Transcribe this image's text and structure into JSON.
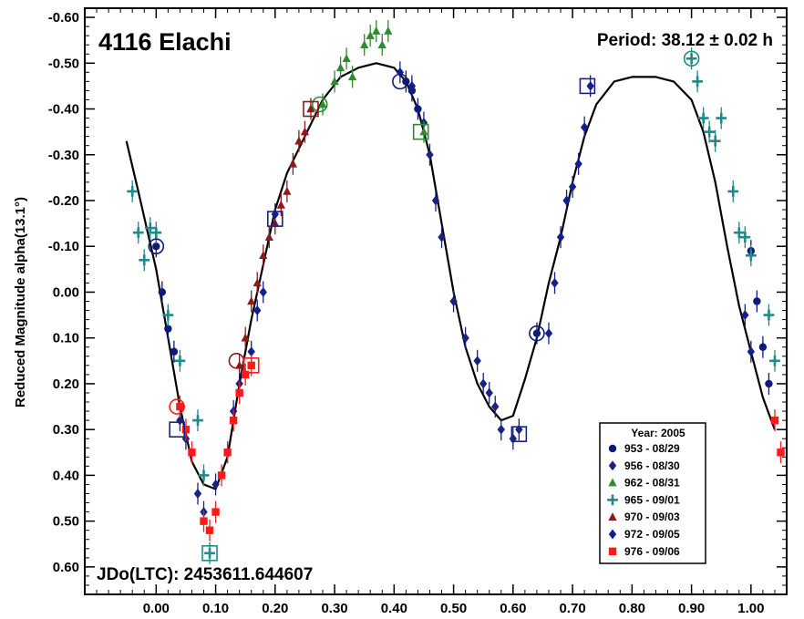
{
  "chart_data": {
    "type": "scatter",
    "title": "4116 Elachi",
    "period_label": "Period: 38.12 ± 0.02 h",
    "epoch_label": "JDo(LTC): 2453611.644607",
    "ylabel": "Reduced Magnitude alpha(13.1°)",
    "xlabel": "",
    "xlim": [
      -0.12,
      1.06
    ],
    "ylim": [
      0.66,
      -0.62
    ],
    "y_inverted": true,
    "grid": false,
    "legend_position": "bottom-right",
    "legend_title": "Year: 2005",
    "x_ticks": [
      {
        "v": 0.0,
        "label": "0.00"
      },
      {
        "v": 0.1,
        "label": "0.10"
      },
      {
        "v": 0.2,
        "label": "0.20"
      },
      {
        "v": 0.3,
        "label": "0.30"
      },
      {
        "v": 0.4,
        "label": "0.40"
      },
      {
        "v": 0.5,
        "label": "0.50"
      },
      {
        "v": 0.6,
        "label": "0.60"
      },
      {
        "v": 0.7,
        "label": "0.70"
      },
      {
        "v": 0.8,
        "label": "0.80"
      },
      {
        "v": 0.9,
        "label": "0.90"
      },
      {
        "v": 1.0,
        "label": "1.00"
      }
    ],
    "y_ticks": [
      {
        "v": -0.6,
        "label": "-0.60"
      },
      {
        "v": -0.5,
        "label": "-0.50"
      },
      {
        "v": -0.4,
        "label": "-0.40"
      },
      {
        "v": -0.3,
        "label": "-0.30"
      },
      {
        "v": -0.2,
        "label": "-0.20"
      },
      {
        "v": -0.1,
        "label": "-0.10"
      },
      {
        "v": 0.0,
        "label": "0.00"
      },
      {
        "v": 0.1,
        "label": "0.10"
      },
      {
        "v": 0.2,
        "label": "0.20"
      },
      {
        "v": 0.3,
        "label": "0.30"
      },
      {
        "v": 0.4,
        "label": "0.40"
      },
      {
        "v": 0.5,
        "label": "0.50"
      },
      {
        "v": 0.6,
        "label": "0.60"
      }
    ],
    "fit_curve": [
      [
        -0.05,
        -0.33
      ],
      [
        -0.03,
        -0.22
      ],
      [
        0.0,
        -0.05
      ],
      [
        0.02,
        0.1
      ],
      [
        0.04,
        0.25
      ],
      [
        0.06,
        0.37
      ],
      [
        0.08,
        0.42
      ],
      [
        0.1,
        0.43
      ],
      [
        0.12,
        0.36
      ],
      [
        0.14,
        0.2
      ],
      [
        0.16,
        0.06
      ],
      [
        0.18,
        -0.06
      ],
      [
        0.2,
        -0.18
      ],
      [
        0.22,
        -0.26
      ],
      [
        0.25,
        -0.34
      ],
      [
        0.28,
        -0.42
      ],
      [
        0.31,
        -0.47
      ],
      [
        0.34,
        -0.49
      ],
      [
        0.37,
        -0.5
      ],
      [
        0.4,
        -0.49
      ],
      [
        0.42,
        -0.46
      ],
      [
        0.44,
        -0.4
      ],
      [
        0.46,
        -0.3
      ],
      [
        0.48,
        -0.15
      ],
      [
        0.5,
        0.0
      ],
      [
        0.52,
        0.12
      ],
      [
        0.54,
        0.2
      ],
      [
        0.56,
        0.25
      ],
      [
        0.58,
        0.28
      ],
      [
        0.6,
        0.27
      ],
      [
        0.62,
        0.19
      ],
      [
        0.64,
        0.1
      ],
      [
        0.66,
        -0.02
      ],
      [
        0.68,
        -0.12
      ],
      [
        0.7,
        -0.24
      ],
      [
        0.72,
        -0.34
      ],
      [
        0.74,
        -0.41
      ],
      [
        0.77,
        -0.46
      ],
      [
        0.8,
        -0.47
      ],
      [
        0.84,
        -0.47
      ],
      [
        0.87,
        -0.46
      ],
      [
        0.9,
        -0.42
      ],
      [
        0.92,
        -0.35
      ],
      [
        0.94,
        -0.24
      ],
      [
        0.96,
        -0.1
      ],
      [
        0.98,
        0.03
      ],
      [
        1.0,
        0.13
      ],
      [
        1.02,
        0.23
      ],
      [
        1.04,
        0.3
      ]
    ],
    "series": [
      {
        "name": "953 - 08/29",
        "marker": "circle",
        "color": "#0d1a7a",
        "x": [
          0.0,
          0.01,
          0.02,
          0.03,
          0.42,
          0.43,
          0.44,
          0.64,
          1.0,
          1.01,
          1.02,
          1.03
        ],
        "y": [
          -0.1,
          0.0,
          0.08,
          0.13,
          -0.46,
          -0.44,
          -0.4,
          0.09,
          -0.09,
          0.02,
          0.12,
          0.2
        ]
      },
      {
        "name": "956 - 08/30",
        "marker": "diamond",
        "color": "#1a237e",
        "x": [
          0.04,
          0.05,
          0.07,
          0.08,
          0.1,
          0.12,
          0.45,
          0.46,
          0.47,
          0.48,
          0.5,
          0.52,
          0.54,
          0.55,
          0.56,
          0.57,
          0.58,
          0.6,
          0.61
        ],
        "y": [
          0.28,
          0.32,
          0.44,
          0.48,
          0.42,
          0.35,
          -0.37,
          -0.3,
          -0.2,
          -0.12,
          0.02,
          0.1,
          0.15,
          0.2,
          0.22,
          0.25,
          0.3,
          0.32,
          0.3
        ]
      },
      {
        "name": "962 - 08/31",
        "marker": "triangle",
        "color": "#2e8b2e",
        "x": [
          0.28,
          0.3,
          0.31,
          0.32,
          0.33,
          0.35,
          0.36,
          0.37,
          0.38,
          0.39,
          0.45
        ],
        "y": [
          -0.41,
          -0.46,
          -0.49,
          -0.51,
          -0.47,
          -0.54,
          -0.56,
          -0.57,
          -0.54,
          -0.57,
          -0.35
        ]
      },
      {
        "name": "965 - 09/01",
        "marker": "plus",
        "color": "#1f8a8a",
        "x": [
          -0.04,
          -0.03,
          -0.02,
          -0.01,
          0.0,
          0.02,
          0.04,
          0.07,
          0.08,
          0.09,
          0.9,
          0.91,
          0.92,
          0.93,
          0.94,
          0.95,
          0.97,
          0.98,
          0.99,
          1.0,
          1.03,
          1.04
        ],
        "y": [
          -0.22,
          -0.13,
          -0.07,
          -0.14,
          -0.13,
          0.05,
          0.15,
          0.28,
          0.4,
          0.57,
          -0.51,
          -0.46,
          -0.38,
          -0.35,
          -0.33,
          -0.38,
          -0.22,
          -0.13,
          -0.12,
          -0.08,
          0.05,
          0.15
        ]
      },
      {
        "name": "970 - 09/03",
        "marker": "triangle",
        "color": "#8b1a1a",
        "x": [
          0.14,
          0.15,
          0.16,
          0.17,
          0.18,
          0.19,
          0.2,
          0.21,
          0.22,
          0.23,
          0.24,
          0.25,
          0.26
        ],
        "y": [
          0.16,
          0.1,
          0.02,
          -0.02,
          -0.08,
          -0.12,
          -0.15,
          -0.19,
          -0.22,
          -0.28,
          -0.33,
          -0.35,
          -0.4
        ]
      },
      {
        "name": "972 - 09/05",
        "marker": "diamond",
        "color": "#141f8f",
        "x": [
          0.13,
          0.14,
          0.16,
          0.17,
          0.18,
          0.2,
          0.41,
          0.43,
          0.66,
          0.67,
          0.68,
          0.69,
          0.7,
          0.71,
          0.72,
          0.73,
          0.99,
          1.0
        ],
        "y": [
          0.26,
          0.2,
          0.13,
          0.04,
          0.0,
          -0.17,
          -0.48,
          -0.45,
          0.09,
          -0.02,
          -0.12,
          -0.2,
          -0.23,
          -0.28,
          -0.36,
          -0.45,
          0.05,
          0.13
        ]
      },
      {
        "name": "976 - 09/06",
        "marker": "square",
        "color": "#ff1a1a",
        "x": [
          0.04,
          0.05,
          0.06,
          0.08,
          0.09,
          0.1,
          0.11,
          0.12,
          0.13,
          0.14,
          0.15,
          0.16,
          1.04,
          1.05
        ],
        "y": [
          0.25,
          0.3,
          0.35,
          0.5,
          0.52,
          0.48,
          0.4,
          0.35,
          0.28,
          0.22,
          0.18,
          0.16,
          0.28,
          0.35
        ]
      }
    ],
    "annotations": [
      {
        "type": "circle",
        "color": "#0d1a7a",
        "x": 0.0,
        "y": -0.1
      },
      {
        "type": "circle",
        "color": "#0d1a7a",
        "x": 0.41,
        "y": -0.46
      },
      {
        "type": "circle",
        "color": "#0d1a7a",
        "x": 0.64,
        "y": 0.09
      },
      {
        "type": "circle",
        "color": "#1f8a8a",
        "x": 0.9,
        "y": -0.51
      },
      {
        "type": "circle",
        "color": "#2e8b2e",
        "x": 0.275,
        "y": -0.41
      },
      {
        "type": "circle",
        "color": "#ff1a1a",
        "x": 0.035,
        "y": 0.25
      },
      {
        "type": "circle",
        "color": "#8b1a1a",
        "x": 0.135,
        "y": 0.15
      },
      {
        "type": "square",
        "color": "#1a237e",
        "x": 0.2,
        "y": -0.16
      },
      {
        "type": "square",
        "color": "#8b1a1a",
        "x": 0.26,
        "y": -0.4
      },
      {
        "type": "square",
        "color": "#2e8b2e",
        "x": 0.445,
        "y": -0.35
      },
      {
        "type": "square",
        "color": "#1a237e",
        "x": 0.725,
        "y": -0.45
      },
      {
        "type": "square",
        "color": "#1a237e",
        "x": 0.61,
        "y": 0.31
      },
      {
        "type": "square",
        "color": "#1a237e",
        "x": 0.035,
        "y": 0.3
      },
      {
        "type": "square",
        "color": "#ff1a1a",
        "x": 0.16,
        "y": 0.16
      },
      {
        "type": "square",
        "color": "#1f8a8a",
        "x": 0.09,
        "y": 0.57
      }
    ]
  }
}
